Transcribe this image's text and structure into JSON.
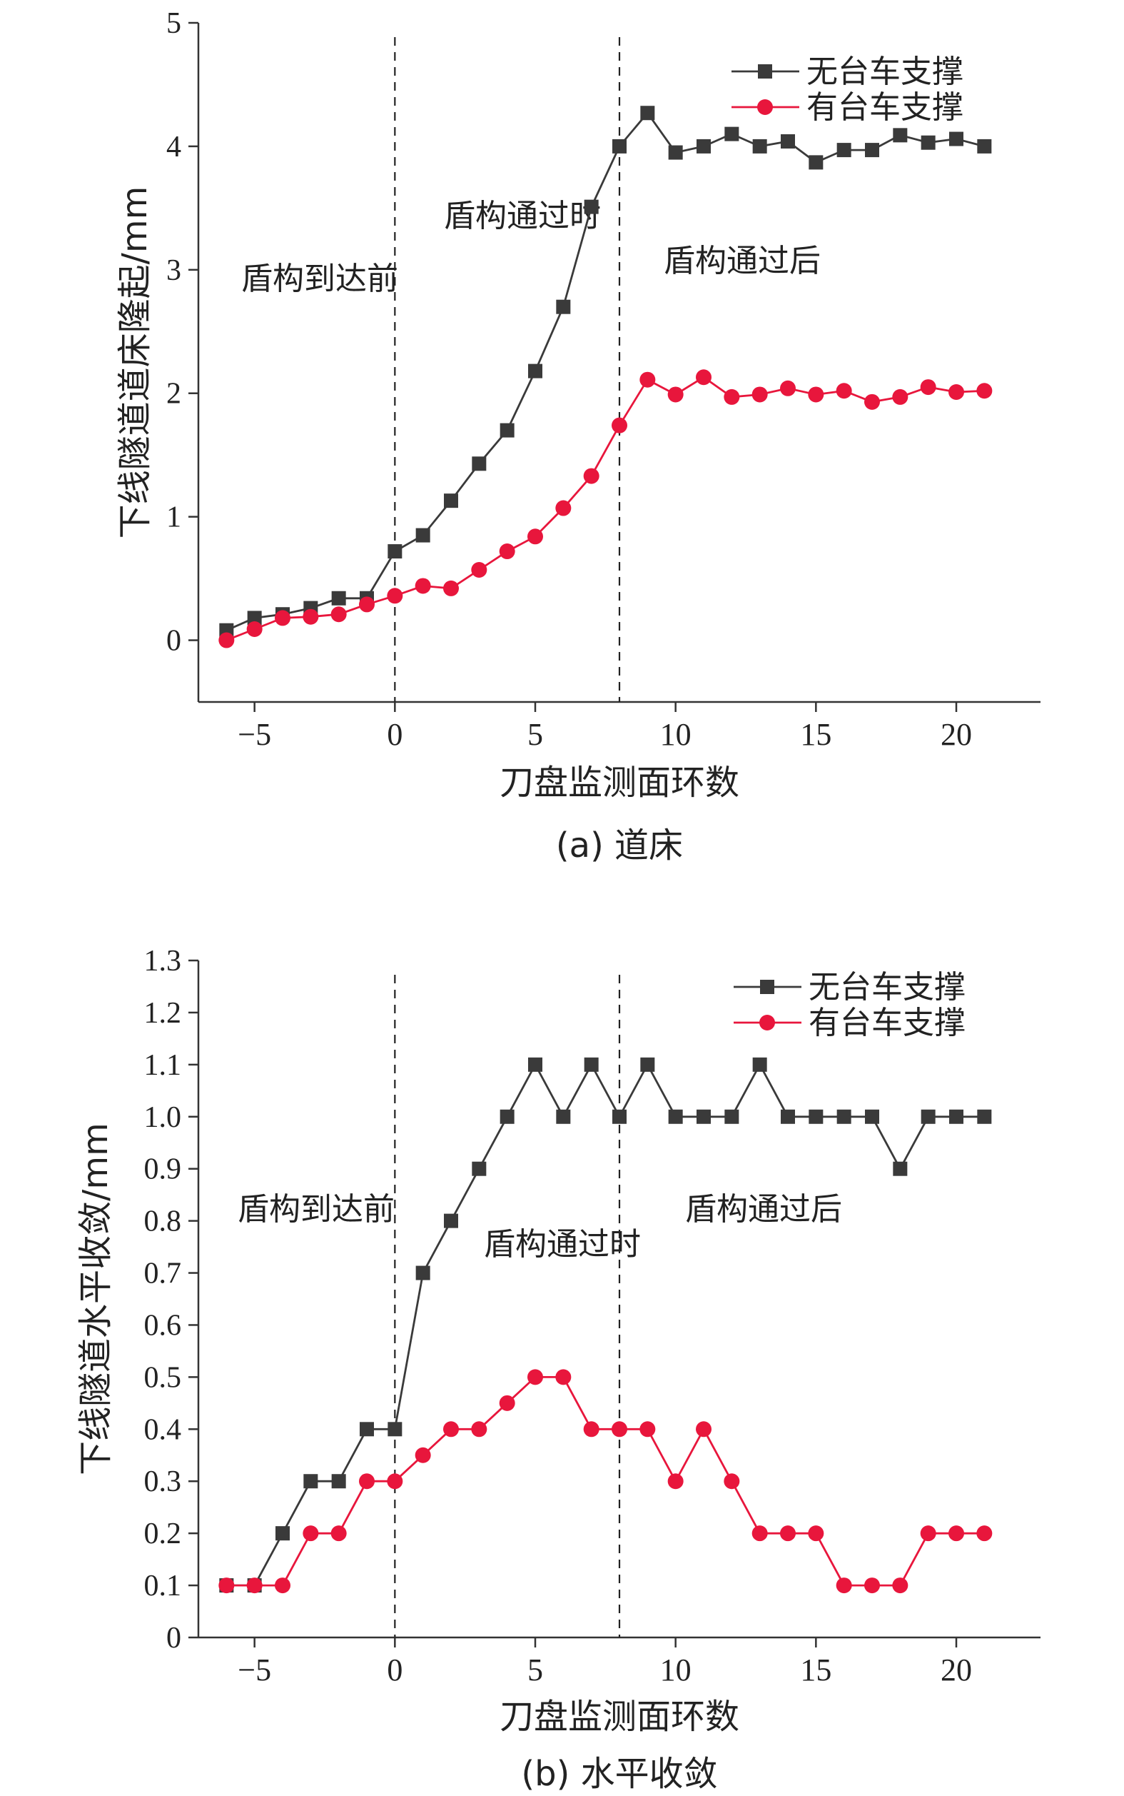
{
  "legend_labels": [
    "无台车支撑",
    "有台车支撑"
  ],
  "series_colors": [
    "#3a3a3a",
    "#e8163c"
  ],
  "marker_shapes": [
    "square",
    "circle"
  ],
  "chart_data": [
    {
      "type": "line",
      "caption": "(a) 道床",
      "xlabel": "刀盘监测面环数",
      "ylabel": "下线隧道道床隆起/mm",
      "xlim": [
        -7,
        23
      ],
      "ylim": [
        -0.5,
        5
      ],
      "xticks": [
        -5,
        0,
        5,
        10,
        15,
        20
      ],
      "xtick_labels": [
        "−5",
        "0",
        "5",
        "10",
        "15",
        "20"
      ],
      "yticks": [
        0,
        1,
        2,
        3,
        4,
        5
      ],
      "ytick_labels": [
        "0",
        "1",
        "2",
        "3",
        "4",
        "5"
      ],
      "vlines": [
        0,
        8
      ],
      "legend_position": "top-right",
      "annotations": [
        "盾构到达前",
        "盾构通过时",
        "盾构通过后"
      ],
      "x": [
        -6,
        -5,
        -4,
        -3,
        -2,
        -1,
        0,
        1,
        2,
        3,
        4,
        5,
        6,
        7,
        8,
        9,
        10,
        11,
        12,
        13,
        14,
        15,
        16,
        17,
        18,
        19,
        20,
        21
      ],
      "series": [
        {
          "name": "无台车支撑",
          "values": [
            0.08,
            0.18,
            0.21,
            0.26,
            0.34,
            0.34,
            0.72,
            0.85,
            1.13,
            1.43,
            1.7,
            2.18,
            2.7,
            3.51,
            4.0,
            4.27,
            3.95,
            4.0,
            4.1,
            4.0,
            4.04,
            3.87,
            3.97,
            3.97,
            4.09,
            4.03,
            4.06,
            4.0
          ]
        },
        {
          "name": "有台车支撑",
          "values": [
            0.0,
            0.09,
            0.18,
            0.19,
            0.21,
            0.29,
            0.36,
            0.44,
            0.42,
            0.57,
            0.72,
            0.84,
            1.07,
            1.33,
            1.74,
            2.11,
            1.99,
            2.13,
            1.97,
            1.99,
            2.04,
            1.99,
            2.02,
            1.93,
            1.97,
            2.05,
            2.01,
            2.02
          ]
        }
      ]
    },
    {
      "type": "line",
      "caption": "(b) 水平收敛",
      "xlabel": "刀盘监测面环数",
      "ylabel": "下线隧道水平收敛/mm",
      "xlim": [
        -7,
        23
      ],
      "ylim": [
        0,
        1.3
      ],
      "xticks": [
        -5,
        0,
        5,
        10,
        15,
        20
      ],
      "xtick_labels": [
        "−5",
        "0",
        "5",
        "10",
        "15",
        "20"
      ],
      "yticks": [
        0,
        0.1,
        0.2,
        0.3,
        0.4,
        0.5,
        0.6,
        0.7,
        0.8,
        0.9,
        1.0,
        1.1,
        1.2,
        1.3
      ],
      "ytick_labels": [
        "0",
        "0.1",
        "0.2",
        "0.3",
        "0.4",
        "0.5",
        "0.6",
        "0.7",
        "0.8",
        "0.9",
        "1.0",
        "1.1",
        "1.2",
        "1.3"
      ],
      "vlines": [
        0,
        8
      ],
      "legend_position": "top-right",
      "annotations": [
        "盾构到达前",
        "盾构通过时",
        "盾构通过后"
      ],
      "x": [
        -6,
        -5,
        -4,
        -3,
        -2,
        -1,
        0,
        1,
        2,
        3,
        4,
        5,
        6,
        7,
        8,
        9,
        10,
        11,
        12,
        13,
        14,
        15,
        16,
        17,
        18,
        19,
        20,
        21
      ],
      "series": [
        {
          "name": "无台车支撑",
          "values": [
            0.1,
            0.1,
            0.2,
            0.3,
            0.3,
            0.4,
            0.4,
            0.7,
            0.8,
            0.9,
            1.0,
            1.1,
            1.0,
            1.1,
            1.0,
            1.1,
            1.0,
            1.0,
            1.0,
            1.1,
            1.0,
            1.0,
            1.0,
            1.0,
            0.9,
            1.0,
            1.0,
            1.0
          ]
        },
        {
          "name": "有台车支撑",
          "values": [
            0.1,
            0.1,
            0.1,
            0.2,
            0.2,
            0.3,
            0.3,
            0.35,
            0.4,
            0.4,
            0.45,
            0.5,
            0.5,
            0.4,
            0.4,
            0.4,
            0.3,
            0.4,
            0.3,
            0.2,
            0.2,
            0.2,
            0.1,
            0.1,
            0.1,
            0.2,
            0.2,
            0.2
          ]
        }
      ]
    }
  ]
}
